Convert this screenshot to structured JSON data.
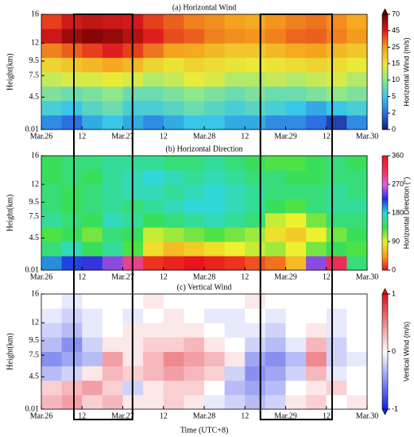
{
  "highlights": [
    [
      0.4,
      1.12
    ],
    [
      2.69,
      3.57
    ]
  ],
  "chart_data": [
    {
      "type": "heatmap",
      "title": "(a) Horizontal Wind",
      "ylabel": "Height(km)",
      "xlim": [
        0,
        4
      ],
      "xticks": [
        {
          "value": 0,
          "label": "Mar.26"
        },
        {
          "value": 0.5,
          "label": "12"
        },
        {
          "value": 1,
          "label": "Mar.27"
        },
        {
          "value": 1.5,
          "label": "12"
        },
        {
          "value": 2,
          "label": "Mar.28"
        },
        {
          "value": 2.5,
          "label": "12"
        },
        {
          "value": 3,
          "label": "Mar.29"
        },
        {
          "value": 3.5,
          "label": "12"
        },
        {
          "value": 4,
          "label": "Mar.30"
        }
      ],
      "ylim": [
        0.01,
        16
      ],
      "yticks": [
        0.01,
        4.5,
        7.5,
        9.5,
        12,
        16
      ],
      "x_bins": [
        0,
        0.25,
        0.5,
        0.75,
        1,
        1.25,
        1.5,
        1.75,
        2,
        2.25,
        2.5,
        2.75,
        3,
        3.25,
        3.5,
        3.75,
        4
      ],
      "y_bins": [
        0.01,
        2,
        4,
        6,
        8,
        10,
        12,
        14,
        16
      ],
      "z": [
        [
          3,
          2,
          4,
          5,
          4,
          3,
          4,
          5,
          5,
          4,
          4,
          3,
          3,
          2,
          1,
          3
        ],
        [
          6,
          5,
          7,
          8,
          6,
          6,
          7,
          8,
          7,
          6,
          7,
          6,
          5,
          4,
          5,
          6
        ],
        [
          9,
          8,
          9,
          10,
          8,
          8,
          9,
          10,
          9,
          8,
          9,
          8,
          8,
          9,
          10,
          9
        ],
        [
          13,
          14,
          14,
          15,
          14,
          12,
          13,
          15,
          14,
          12,
          12,
          13,
          12,
          13,
          14,
          12
        ],
        [
          18,
          20,
          22,
          24,
          22,
          18,
          16,
          18,
          17,
          16,
          15,
          16,
          17,
          18,
          17,
          15
        ],
        [
          30,
          35,
          40,
          45,
          40,
          32,
          25,
          24,
          22,
          20,
          20,
          22,
          24,
          25,
          22,
          20
        ],
        [
          50,
          60,
          65,
          62,
          55,
          45,
          38,
          35,
          30,
          28,
          27,
          30,
          34,
          35,
          30,
          26
        ],
        [
          40,
          48,
          52,
          50,
          48,
          40,
          35,
          30,
          28,
          25,
          24,
          27,
          30,
          32,
          28,
          24
        ]
      ],
      "colorbar": {
        "label": "Horizontal Wind (m/s)",
        "ticks": [
          0,
          2,
          5,
          10,
          15,
          25,
          45,
          70
        ],
        "colors": [
          "#17177e",
          "#2c6fe0",
          "#38c7e8",
          "#8ee88a",
          "#eaea38",
          "#f5a21e",
          "#e01e1e",
          "#6e0000"
        ],
        "arrow_top": true,
        "arrow_bottom": false
      }
    },
    {
      "type": "heatmap",
      "title": "(b) Horizontal Direction",
      "ylabel": "Height(km)",
      "xlim": [
        0,
        4
      ],
      "xticks": [
        {
          "value": 0,
          "label": "Mar.26"
        },
        {
          "value": 0.5,
          "label": "12"
        },
        {
          "value": 1,
          "label": "Mar.27"
        },
        {
          "value": 1.5,
          "label": "12"
        },
        {
          "value": 2,
          "label": "Mar.28"
        },
        {
          "value": 2.5,
          "label": "12"
        },
        {
          "value": 3,
          "label": "Mar.29"
        },
        {
          "value": 3.5,
          "label": "12"
        },
        {
          "value": 4,
          "label": "Mar.30"
        }
      ],
      "ylim": [
        0.01,
        16
      ],
      "yticks": [
        0.01,
        4.5,
        7.5,
        9.5,
        12,
        16
      ],
      "x_bins": [
        0,
        0.25,
        0.5,
        0.75,
        1,
        1.25,
        1.5,
        1.75,
        2,
        2.25,
        2.5,
        2.75,
        3,
        3.25,
        3.5,
        3.75,
        4
      ],
      "y_bins": [
        0.01,
        2,
        4,
        6,
        8,
        10,
        12,
        14,
        16
      ],
      "z": [
        [
          200,
          220,
          230,
          250,
          300,
          10,
          5,
          0,
          5,
          10,
          20,
          30,
          60,
          250,
          320,
          150
        ],
        [
          150,
          170,
          140,
          160,
          130,
          80,
          60,
          70,
          80,
          90,
          100,
          110,
          90,
          120,
          140,
          130
        ],
        [
          130,
          140,
          120,
          150,
          140,
          100,
          110,
          120,
          130,
          120,
          110,
          80,
          70,
          90,
          120,
          140
        ],
        [
          160,
          150,
          140,
          170,
          160,
          140,
          150,
          160,
          170,
          160,
          150,
          100,
          90,
          120,
          150,
          150
        ],
        [
          150,
          140,
          150,
          160,
          150,
          160,
          170,
          180,
          180,
          170,
          160,
          140,
          130,
          150,
          160,
          160
        ],
        [
          150,
          140,
          150,
          160,
          170,
          170,
          160,
          170,
          180,
          170,
          160,
          150,
          150,
          150,
          160,
          150
        ],
        [
          140,
          150,
          140,
          160,
          170,
          180,
          170,
          160,
          170,
          160,
          150,
          150,
          140,
          140,
          150,
          150
        ],
        [
          140,
          150,
          150,
          160,
          160,
          160,
          150,
          150,
          160,
          150,
          140,
          130,
          130,
          140,
          150,
          140
        ]
      ],
      "colorbar": {
        "label": "Horizontal Direction (°)",
        "ticks": [
          0,
          90,
          180,
          270,
          360
        ],
        "colors": [
          "#e8141e",
          "#f5a020",
          "#eef030",
          "#3ae04a",
          "#30d8d8",
          "#2030e0",
          "#e060e0",
          "#f03060",
          "#e8141e"
        ],
        "arrow_top": false,
        "arrow_bottom": false
      }
    },
    {
      "type": "heatmap",
      "title": "(c) Vertical Wind",
      "ylabel": "Height(km)",
      "xlabel": "Time (UTC+8)",
      "xlim": [
        0,
        4
      ],
      "xticks": [
        {
          "value": 0,
          "label": "Mar.26"
        },
        {
          "value": 0.5,
          "label": "12"
        },
        {
          "value": 1,
          "label": "Mar.27"
        },
        {
          "value": 1.5,
          "label": "12"
        },
        {
          "value": 2,
          "label": "Mar.28"
        },
        {
          "value": 2.5,
          "label": "12"
        },
        {
          "value": 3,
          "label": "Mar.29"
        },
        {
          "value": 3.5,
          "label": "12"
        },
        {
          "value": 4,
          "label": "Mar.30"
        }
      ],
      "ylim": [
        0.01,
        16
      ],
      "yticks": [
        0.01,
        4.5,
        7.5,
        9.5,
        12,
        16
      ],
      "x_bins": [
        0,
        0.25,
        0.5,
        0.75,
        1,
        1.25,
        1.5,
        1.75,
        2,
        2.25,
        2.5,
        2.75,
        3,
        3.25,
        3.5,
        3.75,
        4
      ],
      "y_bins": [
        0.01,
        2,
        4,
        6,
        8,
        10,
        12,
        14,
        16
      ],
      "z": [
        [
          0.3,
          0.4,
          0.2,
          0.3,
          0.1,
          0.1,
          0.2,
          0.1,
          -0.1,
          -0.2,
          -0.3,
          -0.2,
          0.1,
          0.2,
          0,
          0.1
        ],
        [
          0.2,
          0.3,
          0.4,
          0.2,
          -0.2,
          0.1,
          0.2,
          0.2,
          0,
          -0.3,
          -0.4,
          -0.3,
          0,
          0.1,
          0.2,
          0
        ],
        [
          -0.3,
          -0.2,
          0.1,
          0.3,
          0.2,
          0.3,
          0.4,
          0.3,
          0.2,
          -0.2,
          -0.5,
          -0.4,
          -0.2,
          0.3,
          -0.1,
          0
        ],
        [
          -0.5,
          -0.4,
          -0.3,
          0.4,
          0.1,
          0.3,
          0.5,
          0.4,
          0.3,
          0.1,
          -0.4,
          -0.5,
          -0.3,
          0.5,
          -0.2,
          -0.1
        ],
        [
          -0.3,
          -0.5,
          -0.2,
          0.1,
          0.1,
          0.2,
          0.2,
          0.3,
          0.1,
          0,
          -0.2,
          -0.3,
          -0.1,
          0.3,
          -0.2,
          0
        ],
        [
          -0.2,
          -0.3,
          -0.1,
          0,
          0.1,
          0.1,
          0.1,
          0.1,
          0,
          -0.1,
          -0.1,
          -0.2,
          0,
          0.1,
          -0.1,
          0
        ],
        [
          -0.1,
          -0.2,
          -0.1,
          0,
          -0.1,
          0,
          0.1,
          0,
          -0.1,
          -0.1,
          0,
          -0.1,
          0,
          0,
          -0.1,
          0
        ],
        [
          0,
          -0.1,
          0,
          0,
          0,
          0.1,
          0,
          0,
          0,
          0,
          0.1,
          0,
          0,
          0,
          0,
          0
        ]
      ],
      "colorbar": {
        "label": "Vertical Wind (m/s)",
        "ticks": [
          -1,
          0,
          1
        ],
        "colors": [
          "#1020e0",
          "#ffffff",
          "#e01020"
        ],
        "arrow_top": true,
        "arrow_bottom": true
      }
    }
  ]
}
